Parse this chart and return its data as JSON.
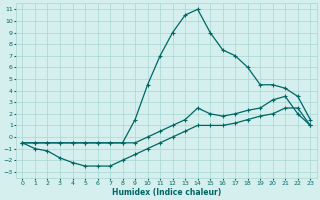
{
  "xlabel": "Humidex (Indice chaleur)",
  "bg_color": "#d4efed",
  "grid_color": "#a8d8d4",
  "line_color": "#006666",
  "xlim": [
    -0.5,
    23.5
  ],
  "ylim": [
    -3.5,
    11.5
  ],
  "xticks": [
    0,
    1,
    2,
    3,
    4,
    5,
    6,
    7,
    8,
    9,
    10,
    11,
    12,
    13,
    14,
    15,
    16,
    17,
    18,
    19,
    20,
    21,
    22,
    23
  ],
  "yticks": [
    -3,
    -2,
    -1,
    0,
    1,
    2,
    3,
    4,
    5,
    6,
    7,
    8,
    9,
    10,
    11
  ],
  "line_peak_x": [
    0,
    1,
    2,
    3,
    4,
    5,
    6,
    7,
    8,
    9,
    10,
    11,
    12,
    13,
    14,
    15,
    16,
    17,
    18,
    19,
    20,
    21,
    22,
    23
  ],
  "line_peak_y": [
    -0.5,
    -0.5,
    -0.5,
    -0.5,
    -0.5,
    -0.5,
    -0.5,
    -0.5,
    -0.5,
    1.5,
    4.5,
    7.0,
    9.0,
    10.5,
    11.0,
    9.0,
    7.5,
    7.0,
    6.0,
    4.5,
    4.5,
    4.2,
    3.5,
    1.5
  ],
  "line_mid_x": [
    0,
    1,
    2,
    3,
    4,
    5,
    6,
    7,
    8,
    9,
    10,
    11,
    12,
    13,
    14,
    15,
    16,
    17,
    18,
    19,
    20,
    21,
    22,
    23
  ],
  "line_mid_y": [
    -0.5,
    -0.5,
    -0.5,
    -0.5,
    -0.5,
    -0.5,
    -0.5,
    -0.5,
    -0.5,
    -0.5,
    0.0,
    0.5,
    1.0,
    1.5,
    2.5,
    2.0,
    1.8,
    2.0,
    2.3,
    2.5,
    3.2,
    3.5,
    2.0,
    1.0
  ],
  "line_low_x": [
    0,
    1,
    2,
    3,
    4,
    5,
    6,
    7,
    8,
    9,
    10,
    11,
    12,
    13,
    14,
    15,
    16,
    17,
    18,
    19,
    20,
    21,
    22,
    23
  ],
  "line_low_y": [
    -0.5,
    -1.0,
    -1.2,
    -1.8,
    -2.2,
    -2.5,
    -2.5,
    -2.5,
    -2.0,
    -1.5,
    -1.0,
    -0.5,
    0.0,
    0.5,
    1.0,
    1.0,
    1.0,
    1.2,
    1.5,
    1.8,
    2.0,
    2.5,
    2.5,
    1.0
  ]
}
